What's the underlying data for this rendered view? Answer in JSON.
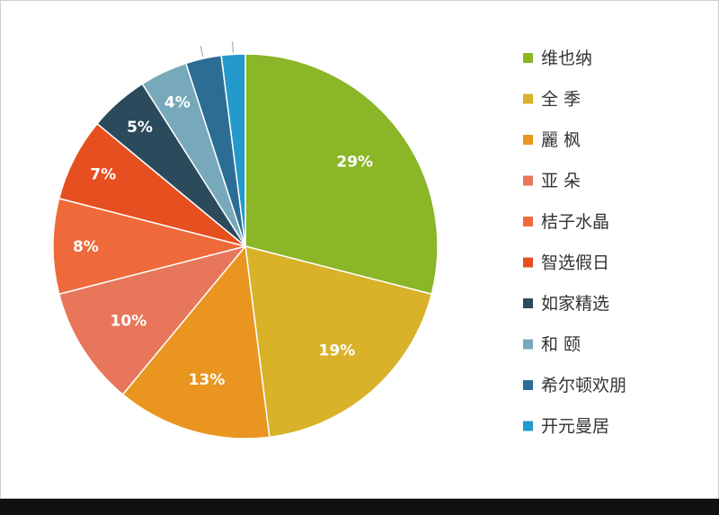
{
  "chart_data": {
    "type": "pie",
    "categories": [
      "维也纳",
      "全 季",
      "麗 枫",
      "亚 朵",
      "桔子水晶",
      "智选假日",
      "如家精选",
      "和 颐",
      "希尔顿欢朋",
      "开元曼居"
    ],
    "values": [
      29,
      19,
      13,
      10,
      8,
      7,
      5,
      4,
      3,
      2
    ],
    "labels": [
      "29%",
      "19%",
      "13%",
      "10%",
      "8%",
      "7%",
      "5%",
      "4%",
      "",
      ""
    ],
    "colors": [
      "#8ab628",
      "#d9b22a",
      "#e9951f",
      "#e8765a",
      "#ee6a3a",
      "#e64f1f",
      "#2b4a5b",
      "#77a9bb",
      "#2b6d95",
      "#2399cc"
    ],
    "legend_position": "right",
    "title": ""
  }
}
